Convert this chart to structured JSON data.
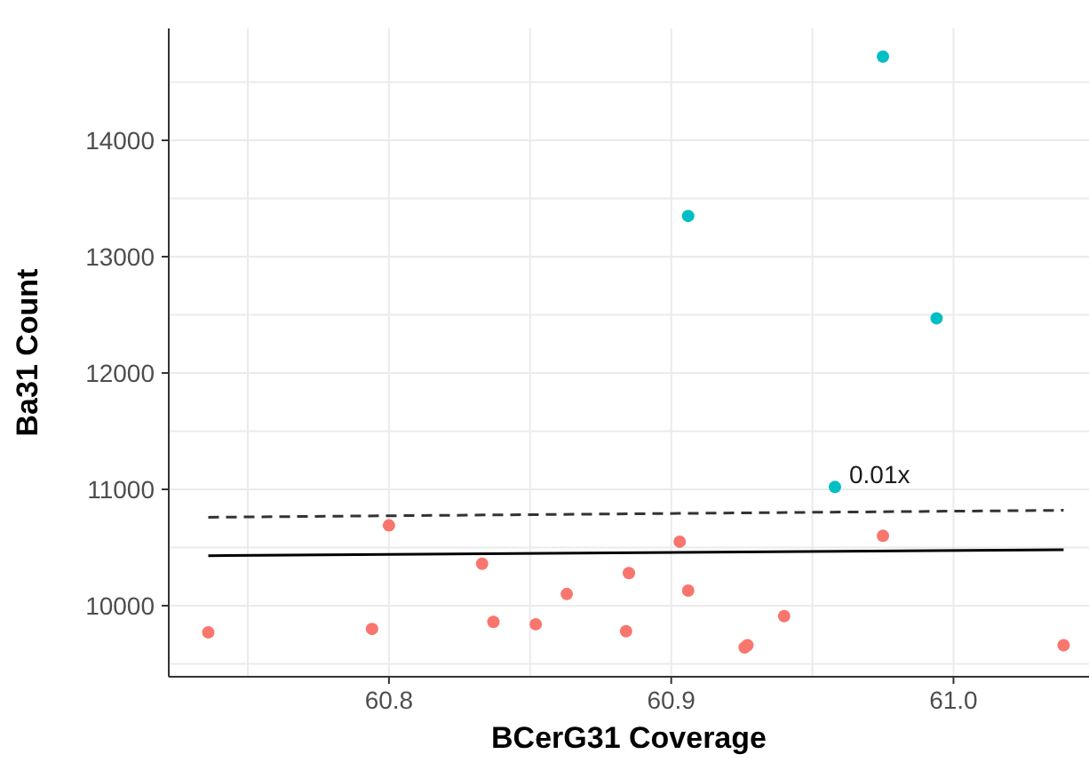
{
  "chart_data": {
    "type": "scatter",
    "xlabel": "BCerG31 Coverage",
    "ylabel": "Ba31 Count",
    "xlim": [
      60.722,
      61.048
    ],
    "ylim": [
      9389,
      14962
    ],
    "xticks": [
      {
        "value": 60.75,
        "label": null
      },
      60.8,
      {
        "value": 60.85,
        "label": null
      },
      60.9,
      {
        "value": 60.95,
        "label": null
      },
      {
        "value": 61,
        "label": "61.0"
      }
    ],
    "yticks": [
      {
        "value": 9500,
        "label": null
      },
      10000,
      {
        "value": 10500,
        "label": null
      },
      11000,
      {
        "value": 11500,
        "label": null
      },
      12000,
      {
        "value": 12500,
        "label": null
      },
      13000,
      {
        "value": 13500,
        "label": null
      },
      14000,
      {
        "value": 14500,
        "label": null
      }
    ],
    "grid": true,
    "legend": false,
    "marker": "circle",
    "series": [
      {
        "color": "#f8766d",
        "x": [
          60.736,
          60.794,
          60.8,
          60.833,
          60.837,
          60.852,
          60.863,
          60.885,
          60.884,
          60.903,
          60.906,
          60.926,
          60.927,
          60.94,
          60.975,
          61.039
        ],
        "values": [
          9770,
          9800,
          10690,
          10360,
          9860,
          9840,
          10100,
          10280,
          9780,
          10550,
          10130,
          9640,
          9660,
          9910,
          10600,
          9660
        ]
      },
      {
        "color": "#00bfc4",
        "x": [
          60.975,
          60.906,
          60.994,
          60.958
        ],
        "values": [
          14720,
          13350,
          12470,
          11020
        ]
      },
      {
        "type": "line",
        "color": "#000000",
        "line_style": "solid",
        "marker": "none",
        "x": [
          60.736,
          61.039
        ],
        "values": [
          10430,
          10480
        ]
      },
      {
        "type": "line",
        "color": "#333333",
        "line_style": "dashed",
        "marker": "none",
        "x": [
          60.736,
          61.039
        ],
        "values": [
          10760,
          10820
        ]
      }
    ],
    "annotations": [
      {
        "text": "0.01x",
        "x": 60.958,
        "y": 11020
      }
    ]
  }
}
